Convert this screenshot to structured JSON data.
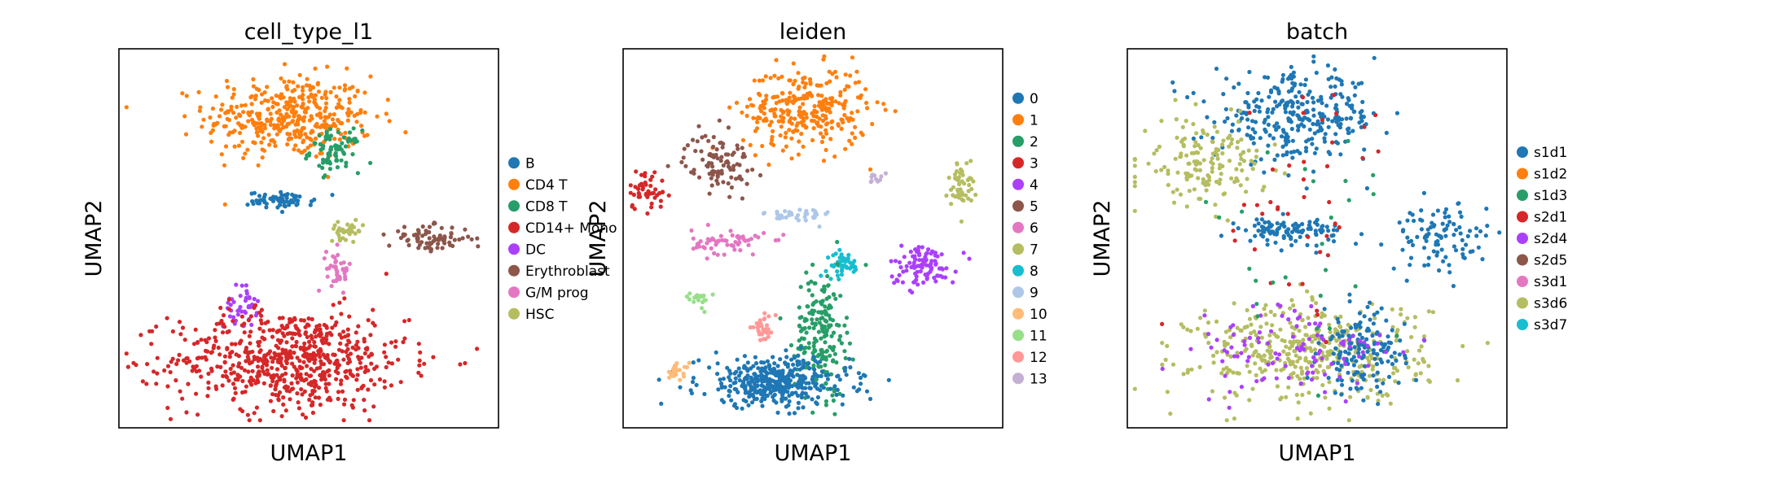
{
  "chart_data": [
    {
      "type": "scatter",
      "title": "cell_type_l1",
      "xlabel": "UMAP1",
      "ylabel": "UMAP2",
      "legend_position": "right",
      "categories": [
        "B",
        "CD4 T",
        "CD8 T",
        "CD14+ Mono",
        "DC",
        "Erythroblast",
        "G/M prog",
        "HSC"
      ],
      "colors": [
        "#1f77b4",
        "#ff7f0e",
        "#279e68",
        "#d62728",
        "#aa40fc",
        "#8c564b",
        "#e377c2",
        "#b5bd61"
      ],
      "regions": [
        {
          "label": "CD4 T",
          "center": [
            0.45,
            0.82
          ],
          "spread": [
            0.2,
            0.1
          ],
          "weight": 6
        },
        {
          "label": "CD8 T",
          "center": [
            0.57,
            0.73
          ],
          "spread": [
            0.06,
            0.05
          ],
          "weight": 1.2
        },
        {
          "label": "B",
          "center": [
            0.43,
            0.6
          ],
          "spread": [
            0.08,
            0.02
          ],
          "weight": 1
        },
        {
          "label": "DC",
          "center": [
            0.32,
            0.32
          ],
          "spread": [
            0.04,
            0.05
          ],
          "weight": 0.6
        },
        {
          "label": "CD14+ Mono",
          "center": [
            0.45,
            0.18
          ],
          "spread": [
            0.28,
            0.12
          ],
          "weight": 10
        },
        {
          "label": "G/M prog",
          "center": [
            0.58,
            0.42
          ],
          "spread": [
            0.03,
            0.05
          ],
          "weight": 0.6
        },
        {
          "label": "HSC",
          "center": [
            0.6,
            0.52
          ],
          "spread": [
            0.04,
            0.02
          ],
          "weight": 0.5
        },
        {
          "label": "Erythroblast",
          "center": [
            0.82,
            0.5
          ],
          "spread": [
            0.1,
            0.03
          ],
          "weight": 1.2
        }
      ]
    },
    {
      "type": "scatter",
      "title": "leiden",
      "xlabel": "UMAP1",
      "ylabel": "UMAP2",
      "legend_position": "right",
      "categories": [
        "0",
        "1",
        "2",
        "3",
        "4",
        "5",
        "6",
        "7",
        "8",
        "9",
        "10",
        "11",
        "12",
        "13"
      ],
      "colors": [
        "#1f77b4",
        "#ff7f0e",
        "#279e68",
        "#d62728",
        "#aa40fc",
        "#8c564b",
        "#e377c2",
        "#b5bd61",
        "#17becf",
        "#aec7e8",
        "#ffbb78",
        "#98df8a",
        "#ff9896",
        "#c5b0d5"
      ],
      "regions": [
        {
          "label": "1",
          "center": [
            0.48,
            0.84
          ],
          "spread": [
            0.15,
            0.1
          ],
          "weight": 6
        },
        {
          "label": "5",
          "center": [
            0.25,
            0.7
          ],
          "spread": [
            0.08,
            0.07
          ],
          "weight": 2
        },
        {
          "label": "3",
          "center": [
            0.06,
            0.63
          ],
          "spread": [
            0.05,
            0.05
          ],
          "weight": 1
        },
        {
          "label": "9",
          "center": [
            0.46,
            0.56
          ],
          "spread": [
            0.08,
            0.02
          ],
          "weight": 0.8
        },
        {
          "label": "6",
          "center": [
            0.28,
            0.49
          ],
          "spread": [
            0.09,
            0.03
          ],
          "weight": 1.2
        },
        {
          "label": "13",
          "center": [
            0.67,
            0.66
          ],
          "spread": [
            0.02,
            0.02
          ],
          "weight": 0.2
        },
        {
          "label": "7",
          "center": [
            0.89,
            0.64
          ],
          "spread": [
            0.03,
            0.06
          ],
          "weight": 1
        },
        {
          "label": "4",
          "center": [
            0.79,
            0.43
          ],
          "spread": [
            0.08,
            0.05
          ],
          "weight": 2
        },
        {
          "label": "8",
          "center": [
            0.58,
            0.43
          ],
          "spread": [
            0.04,
            0.03
          ],
          "weight": 1
        },
        {
          "label": "2",
          "center": [
            0.52,
            0.25
          ],
          "spread": [
            0.06,
            0.15
          ],
          "weight": 4
        },
        {
          "label": "0",
          "center": [
            0.4,
            0.12
          ],
          "spread": [
            0.18,
            0.06
          ],
          "weight": 8
        },
        {
          "label": "12",
          "center": [
            0.37,
            0.26
          ],
          "spread": [
            0.03,
            0.03
          ],
          "weight": 0.6
        },
        {
          "label": "10",
          "center": [
            0.14,
            0.15
          ],
          "spread": [
            0.03,
            0.02
          ],
          "weight": 0.5
        },
        {
          "label": "11",
          "center": [
            0.2,
            0.34
          ],
          "spread": [
            0.03,
            0.02
          ],
          "weight": 0.4
        }
      ]
    },
    {
      "type": "scatter",
      "title": "batch",
      "xlabel": "UMAP1",
      "ylabel": "UMAP2",
      "legend_position": "right",
      "categories": [
        "s1d1",
        "s1d2",
        "s1d3",
        "s2d1",
        "s2d4",
        "s2d5",
        "s3d1",
        "s3d6",
        "s3d7"
      ],
      "colors": [
        "#1f77b4",
        "#ff7f0e",
        "#279e68",
        "#d62728",
        "#aa40fc",
        "#8c564b",
        "#e377c2",
        "#b5bd61",
        "#17becf"
      ],
      "regions": [
        {
          "label": "s1d1",
          "center": [
            0.45,
            0.82
          ],
          "spread": [
            0.2,
            0.1
          ],
          "weight": 6
        },
        {
          "label": "s3d6",
          "center": [
            0.2,
            0.7
          ],
          "spread": [
            0.15,
            0.1
          ],
          "weight": 3
        },
        {
          "label": "s1d1",
          "center": [
            0.43,
            0.52
          ],
          "spread": [
            0.12,
            0.03
          ],
          "weight": 2
        },
        {
          "label": "s3d6",
          "center": [
            0.48,
            0.2
          ],
          "spread": [
            0.28,
            0.12
          ],
          "weight": 8
        },
        {
          "label": "s1d1",
          "center": [
            0.62,
            0.2
          ],
          "spread": [
            0.1,
            0.1
          ],
          "weight": 3
        },
        {
          "label": "s1d1",
          "center": [
            0.82,
            0.5
          ],
          "spread": [
            0.12,
            0.08
          ],
          "weight": 2
        },
        {
          "label": "s2d4",
          "center": [
            0.45,
            0.2
          ],
          "spread": [
            0.25,
            0.12
          ],
          "weight": 2
        },
        {
          "label": "s2d1",
          "center": [
            0.45,
            0.6
          ],
          "spread": [
            0.25,
            0.3
          ],
          "weight": 0.8
        },
        {
          "label": "s1d3",
          "center": [
            0.45,
            0.5
          ],
          "spread": [
            0.25,
            0.3
          ],
          "weight": 0.5
        }
      ]
    }
  ]
}
